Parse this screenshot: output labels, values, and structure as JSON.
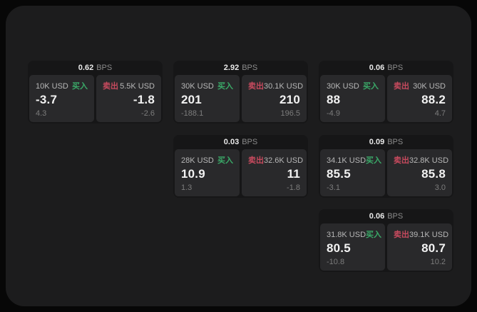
{
  "labels": {
    "bps_unit": "BPS",
    "buy": "买入",
    "sell": "卖出"
  },
  "colors": {
    "outer_bg": "#070707",
    "canvas_bg": "#1c1c1d",
    "card_bg": "#161617",
    "panel_bg": "#29292b",
    "buy_green": "#3aa968",
    "sell_red": "#c74a5e",
    "price_text": "#f2f2f2",
    "muted_text": "#7c7c7c"
  },
  "cards": [
    {
      "bps": "0.62",
      "buy": {
        "amount": "10K USD",
        "price": "-3.7",
        "sub": "4.3"
      },
      "sell": {
        "amount": "5.5K USD",
        "price": "-1.8",
        "sub": "-2.6"
      }
    },
    {
      "bps": "2.92",
      "buy": {
        "amount": "30K USD",
        "price": "201",
        "sub": "-188.1"
      },
      "sell": {
        "amount": "30.1K USD",
        "price": "210",
        "sub": "196.5"
      }
    },
    {
      "bps": "0.06",
      "buy": {
        "amount": "30K USD",
        "price": "88",
        "sub": "-4.9"
      },
      "sell": {
        "amount": "30K USD",
        "price": "88.2",
        "sub": "4.7"
      }
    },
    {
      "bps": "0.03",
      "buy": {
        "amount": "28K USD",
        "price": "10.9",
        "sub": "1.3"
      },
      "sell": {
        "amount": "32.6K USD",
        "price": "11",
        "sub": "-1.8"
      }
    },
    {
      "bps": "0.09",
      "buy": {
        "amount": "34.1K USD",
        "price": "85.5",
        "sub": "-3.1"
      },
      "sell": {
        "amount": "32.8K USD",
        "price": "85.8",
        "sub": "3.0"
      }
    },
    {
      "bps": "0.06",
      "buy": {
        "amount": "31.8K USD",
        "price": "80.5",
        "sub": "-10.8"
      },
      "sell": {
        "amount": "39.1K USD",
        "price": "80.7",
        "sub": "10.2"
      }
    }
  ]
}
